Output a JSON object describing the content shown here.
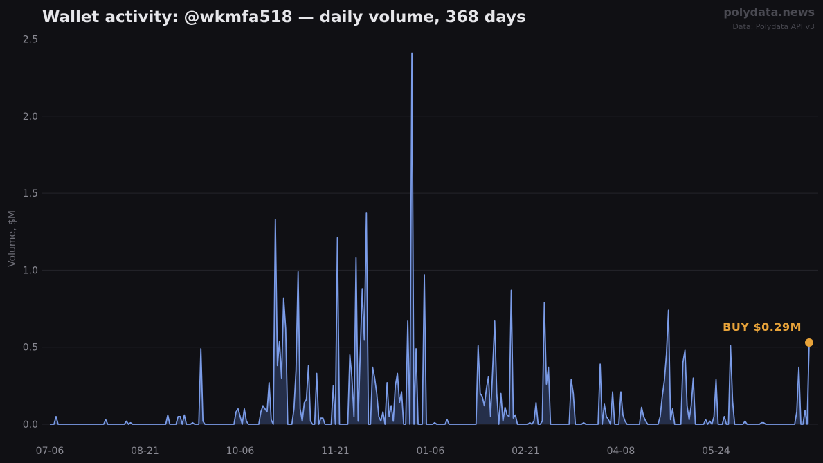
{
  "header": {
    "title": "Wallet activity: @wkmfa518 — daily volume, 368 days",
    "brand": "polydata.news",
    "source": "Data: Polydata API v3"
  },
  "colors": {
    "background": "#101014",
    "line": "#7b9ce8",
    "fill": "#2c3a5c",
    "annotation": "#e8a33a",
    "grid": "#24242b"
  },
  "chart_data": {
    "type": "area",
    "title": "Wallet activity: @wkmfa518 — daily volume, 368 days",
    "xlabel": "",
    "ylabel": "Volume, $M",
    "ylim": [
      0,
      2.5
    ],
    "yticks": [
      "0.0",
      "0.5",
      "1.0",
      "1.5",
      "2.0",
      "2.5"
    ],
    "xticks": [
      "07-06",
      "08-21",
      "10-06",
      "11-21",
      "01-06",
      "02-21",
      "04-08",
      "05-24"
    ],
    "xtick_day_index": [
      0,
      46,
      92,
      138,
      184,
      230,
      276,
      322
    ],
    "grid": true,
    "x_unit": "day index (0 = 07-06, 367 = last day)",
    "series": [
      {
        "points": [
          [
            0,
            0
          ],
          [
            2,
            0
          ],
          [
            3,
            0.05
          ],
          [
            4,
            0
          ],
          [
            26,
            0
          ],
          [
            27,
            0.03
          ],
          [
            28,
            0
          ],
          [
            36,
            0
          ],
          [
            37,
            0.02
          ],
          [
            38,
            0
          ],
          [
            39,
            0.01
          ],
          [
            40,
            0
          ],
          [
            56,
            0
          ],
          [
            57,
            0.06
          ],
          [
            58,
            0
          ],
          [
            61,
            0
          ],
          [
            62,
            0.05
          ],
          [
            63,
            0.05
          ],
          [
            64,
            0
          ],
          [
            65,
            0.06
          ],
          [
            66,
            0
          ],
          [
            68,
            0
          ],
          [
            69,
            0.01
          ],
          [
            70,
            0
          ],
          [
            72,
            0
          ],
          [
            73,
            0.49
          ],
          [
            74,
            0.02
          ],
          [
            75,
            0
          ],
          [
            89,
            0
          ],
          [
            90,
            0.08
          ],
          [
            91,
            0.1
          ],
          [
            93,
            0
          ],
          [
            94,
            0.1
          ],
          [
            95,
            0.02
          ],
          [
            96,
            0
          ],
          [
            101,
            0
          ],
          [
            102,
            0.08
          ],
          [
            103,
            0.12
          ],
          [
            104,
            0.1
          ],
          [
            105,
            0.08
          ],
          [
            106,
            0.27
          ],
          [
            107,
            0.03
          ],
          [
            108,
            0
          ],
          [
            109,
            1.33
          ],
          [
            110,
            0.38
          ],
          [
            111,
            0.54
          ],
          [
            112,
            0.3
          ],
          [
            113,
            0.82
          ],
          [
            114,
            0.62
          ],
          [
            115,
            0
          ],
          [
            117,
            0
          ],
          [
            118,
            0.1
          ],
          [
            119,
            0.35
          ],
          [
            120,
            0.99
          ],
          [
            121,
            0.1
          ],
          [
            122,
            0.02
          ],
          [
            123,
            0.14
          ],
          [
            124,
            0.16
          ],
          [
            125,
            0.38
          ],
          [
            126,
            0.02
          ],
          [
            127,
            0
          ],
          [
            128,
            0
          ],
          [
            129,
            0.33
          ],
          [
            130,
            0
          ],
          [
            131,
            0.04
          ],
          [
            132,
            0.04
          ],
          [
            133,
            0
          ],
          [
            136,
            0
          ],
          [
            137,
            0.25
          ],
          [
            138,
            0
          ],
          [
            139,
            1.21
          ],
          [
            140,
            0
          ],
          [
            142,
            0
          ],
          [
            144,
            0
          ],
          [
            145,
            0.45
          ],
          [
            146,
            0.3
          ],
          [
            147,
            0.05
          ],
          [
            148,
            1.08
          ],
          [
            149,
            0.02
          ],
          [
            150,
            0.45
          ],
          [
            151,
            0.88
          ],
          [
            152,
            0.55
          ],
          [
            153,
            1.37
          ],
          [
            154,
            0
          ],
          [
            155,
            0
          ],
          [
            156,
            0.37
          ],
          [
            157,
            0.3
          ],
          [
            158,
            0.2
          ],
          [
            159,
            0.05
          ],
          [
            160,
            0.02
          ],
          [
            161,
            0.08
          ],
          [
            162,
            0
          ],
          [
            163,
            0.27
          ],
          [
            164,
            0.05
          ],
          [
            165,
            0.12
          ],
          [
            166,
            0.02
          ],
          [
            167,
            0.25
          ],
          [
            168,
            0.33
          ],
          [
            169,
            0.14
          ],
          [
            170,
            0.21
          ],
          [
            171,
            0
          ],
          [
            172,
            0
          ],
          [
            173,
            0.67
          ],
          [
            174,
            0
          ],
          [
            175,
            2.41
          ],
          [
            176,
            0
          ],
          [
            177,
            0.49
          ],
          [
            178,
            0
          ],
          [
            180,
            0
          ],
          [
            181,
            0.97
          ],
          [
            182,
            0
          ],
          [
            185,
            0
          ],
          [
            186,
            0.01
          ],
          [
            187,
            0
          ],
          [
            191,
            0
          ],
          [
            192,
            0.03
          ],
          [
            193,
            0
          ],
          [
            206,
            0
          ],
          [
            207,
            0.51
          ],
          [
            208,
            0.2
          ],
          [
            209,
            0.18
          ],
          [
            210,
            0.12
          ],
          [
            211,
            0.23
          ],
          [
            212,
            0.31
          ],
          [
            213,
            0.05
          ],
          [
            214,
            0.35
          ],
          [
            215,
            0.67
          ],
          [
            216,
            0.2
          ],
          [
            217,
            0
          ],
          [
            218,
            0.2
          ],
          [
            219,
            0.02
          ],
          [
            220,
            0.11
          ],
          [
            221,
            0.06
          ],
          [
            222,
            0.05
          ],
          [
            223,
            0.87
          ],
          [
            224,
            0.04
          ],
          [
            225,
            0.06
          ],
          [
            226,
            0
          ],
          [
            231,
            0
          ],
          [
            232,
            0.01
          ],
          [
            233,
            0
          ],
          [
            234,
            0.02
          ],
          [
            235,
            0.14
          ],
          [
            236,
            0
          ],
          [
            237,
            0
          ],
          [
            238,
            0.02
          ],
          [
            239,
            0.79
          ],
          [
            240,
            0.26
          ],
          [
            241,
            0.37
          ],
          [
            242,
            0
          ],
          [
            251,
            0
          ],
          [
            252,
            0.29
          ],
          [
            253,
            0.2
          ],
          [
            254,
            0
          ],
          [
            257,
            0
          ],
          [
            258,
            0.01
          ],
          [
            259,
            0
          ],
          [
            265,
            0
          ],
          [
            266,
            0.39
          ],
          [
            267,
            0
          ],
          [
            268,
            0.13
          ],
          [
            269,
            0.05
          ],
          [
            270,
            0.03
          ],
          [
            271,
            0
          ],
          [
            272,
            0.21
          ],
          [
            273,
            0
          ],
          [
            274,
            0
          ],
          [
            275,
            0
          ],
          [
            276,
            0.21
          ],
          [
            277,
            0.06
          ],
          [
            278,
            0.02
          ],
          [
            279,
            0
          ],
          [
            285,
            0
          ],
          [
            286,
            0.11
          ],
          [
            287,
            0.05
          ],
          [
            288,
            0.02
          ],
          [
            289,
            0
          ],
          [
            294,
            0
          ],
          [
            295,
            0.05
          ],
          [
            296,
            0.18
          ],
          [
            297,
            0.28
          ],
          [
            298,
            0.45
          ],
          [
            299,
            0.74
          ],
          [
            300,
            0.03
          ],
          [
            301,
            0.1
          ],
          [
            302,
            0
          ],
          [
            305,
            0
          ],
          [
            306,
            0.4
          ],
          [
            307,
            0.48
          ],
          [
            308,
            0.12
          ],
          [
            309,
            0.03
          ],
          [
            310,
            0.12
          ],
          [
            311,
            0.3
          ],
          [
            312,
            0
          ],
          [
            316,
            0
          ],
          [
            317,
            0.03
          ],
          [
            318,
            0
          ],
          [
            319,
            0.02
          ],
          [
            320,
            0
          ],
          [
            321,
            0.05
          ],
          [
            322,
            0.29
          ],
          [
            323,
            0
          ],
          [
            325,
            0
          ],
          [
            326,
            0.05
          ],
          [
            327,
            0
          ],
          [
            328,
            0
          ],
          [
            329,
            0.51
          ],
          [
            330,
            0.15
          ],
          [
            331,
            0
          ],
          [
            335,
            0
          ],
          [
            336,
            0.02
          ],
          [
            337,
            0
          ],
          [
            343,
            0
          ],
          [
            344,
            0.01
          ],
          [
            345,
            0.01
          ],
          [
            346,
            0
          ],
          [
            360,
            0
          ],
          [
            361,
            0.08
          ],
          [
            362,
            0.37
          ],
          [
            363,
            0
          ],
          [
            364,
            0
          ],
          [
            365,
            0.09
          ],
          [
            366,
            0
          ],
          [
            367,
            0.53
          ]
        ]
      }
    ],
    "annotation": {
      "text": "BUY $0.29M",
      "day_index": 367,
      "value": 0.53
    }
  }
}
